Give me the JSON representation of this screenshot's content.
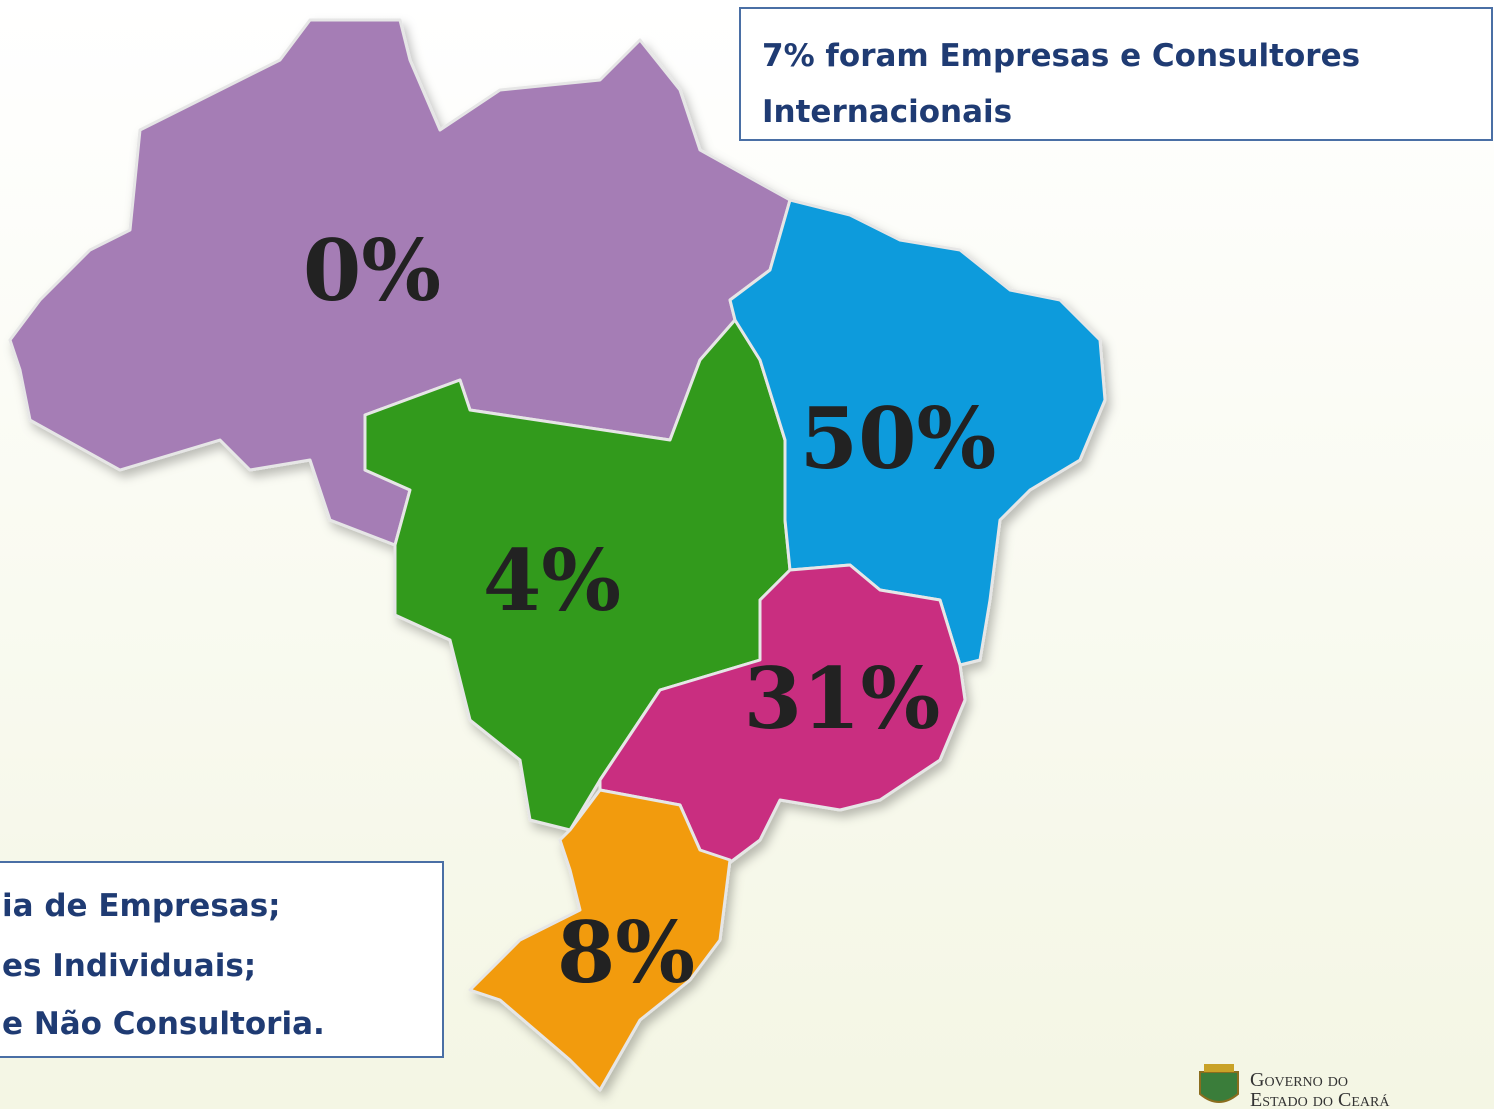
{
  "callout_top": {
    "lines": [
      "7% foram Empresas e Consultores",
      "Internacionais"
    ]
  },
  "callout_bottom": {
    "lines": [
      "ia de Empresas;",
      "es Individuais;",
      "e Não Consultoria."
    ]
  },
  "regions": [
    {
      "label": "0%"
    },
    {
      "label": "4%"
    },
    {
      "label": "50%"
    },
    {
      "label": "31%"
    },
    {
      "label": "8%"
    }
  ],
  "logo": {
    "lines": [
      "Governo do",
      "Estado do Ceará"
    ]
  }
}
